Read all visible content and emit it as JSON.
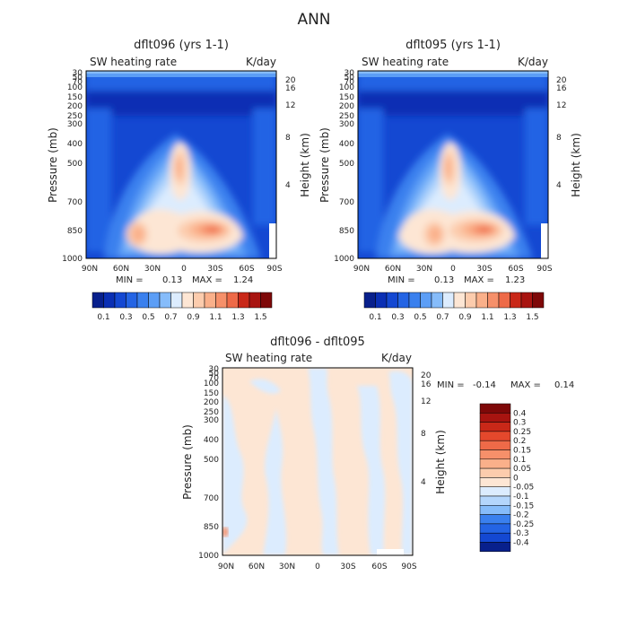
{
  "page_title": "ANN",
  "colors": {
    "cool": [
      "#08208c",
      "#0a2fb4",
      "#1448d2",
      "#2464e4",
      "#3a80ee",
      "#5c9ef6",
      "#86bcfa",
      "#b4d6fc",
      "#dcecfe"
    ],
    "warm": [
      "#fde6d4",
      "#fcccad",
      "#fab08a",
      "#f6906a",
      "#ee6a48",
      "#e4482c",
      "#c92818",
      "#a81410",
      "#7e0808"
    ]
  },
  "chart_data": [
    {
      "type": "heatmap",
      "title": "dflt096 (yrs 1-1)",
      "subtitle": "SW heating rate",
      "units": "K/day",
      "xlabel": "",
      "ylabel": "Pressure (mb)",
      "ylabel_right": "Height (km)",
      "x_ticks": [
        "90N",
        "60N",
        "30N",
        "0",
        "30S",
        "60S",
        "90S"
      ],
      "y_ticks": [
        "30",
        "50",
        "70",
        "100",
        "150",
        "200",
        "250",
        "300",
        "400",
        "500",
        "700",
        "850",
        "1000"
      ],
      "y_scale": "log",
      "y_range": [
        30,
        1000
      ],
      "height_ticks": [
        "20",
        "16",
        "12",
        "8",
        "4"
      ],
      "stats": {
        "min_label": "MIN =",
        "min": "0.13",
        "max_label": "MAX =",
        "max": "1.24"
      },
      "legend_levels": [
        "0.1",
        "0.2",
        "0.3",
        "0.4",
        "0.5",
        "0.6",
        "0.7",
        "0.8",
        "0.9",
        "1",
        "1.1",
        "1.2",
        "1.3",
        "1.4",
        "1.5"
      ],
      "legend_labels": [
        "0.1",
        "0.3",
        "0.5",
        "0.7",
        "0.9",
        "1.1",
        "1.3",
        "1.5"
      ]
    },
    {
      "type": "heatmap",
      "title": "dflt095 (yrs 1-1)",
      "subtitle": "SW heating rate",
      "units": "K/day",
      "xlabel": "",
      "ylabel": "Pressure (mb)",
      "ylabel_right": "Height (km)",
      "x_ticks": [
        "90N",
        "60N",
        "30N",
        "0",
        "30S",
        "60S",
        "90S"
      ],
      "y_ticks": [
        "30",
        "50",
        "70",
        "100",
        "150",
        "200",
        "250",
        "300",
        "400",
        "500",
        "700",
        "850",
        "1000"
      ],
      "y_scale": "log",
      "y_range": [
        30,
        1000
      ],
      "height_ticks": [
        "20",
        "16",
        "12",
        "8",
        "4"
      ],
      "stats": {
        "min_label": "MIN =",
        "min": "0.13",
        "max_label": "MAX =",
        "max": "1.23"
      },
      "legend_levels": [
        "0.1",
        "0.2",
        "0.3",
        "0.4",
        "0.5",
        "0.6",
        "0.7",
        "0.8",
        "0.9",
        "1",
        "1.1",
        "1.2",
        "1.3",
        "1.4",
        "1.5"
      ],
      "legend_labels": [
        "0.1",
        "0.3",
        "0.5",
        "0.7",
        "0.9",
        "1.1",
        "1.3",
        "1.5"
      ]
    },
    {
      "type": "heatmap",
      "title": "dflt096 - dflt095",
      "subtitle": "SW heating rate",
      "units": "K/day",
      "xlabel": "",
      "ylabel": "Pressure (mb)",
      "ylabel_right": "Height (km)",
      "x_ticks": [
        "90N",
        "60N",
        "30N",
        "0",
        "30S",
        "60S",
        "90S"
      ],
      "y_ticks": [
        "30",
        "50",
        "70",
        "100",
        "150",
        "200",
        "250",
        "300",
        "400",
        "500",
        "700",
        "850",
        "1000"
      ],
      "y_scale": "log",
      "y_range": [
        30,
        1000
      ],
      "height_ticks": [
        "20",
        "16",
        "12",
        "8",
        "4"
      ],
      "stats": {
        "min_label": "MIN =",
        "min": "-0.14",
        "max_label": "MAX =",
        "max": "0.14"
      },
      "legend_levels": [
        "0.4",
        "0.3",
        "0.25",
        "0.2",
        "0.15",
        "0.1",
        "0.05",
        "0",
        "-0.05",
        "-0.1",
        "-0.15",
        "-0.2",
        "-0.25",
        "-0.3",
        "-0.4"
      ],
      "legend_labels": [
        "0.4",
        "0.3",
        "0.25",
        "0.2",
        "0.15",
        "0.1",
        "0.05",
        "0",
        "-0.05",
        "-0.1",
        "-0.15",
        "-0.2",
        "-0.25",
        "-0.3",
        "-0.4"
      ]
    }
  ]
}
